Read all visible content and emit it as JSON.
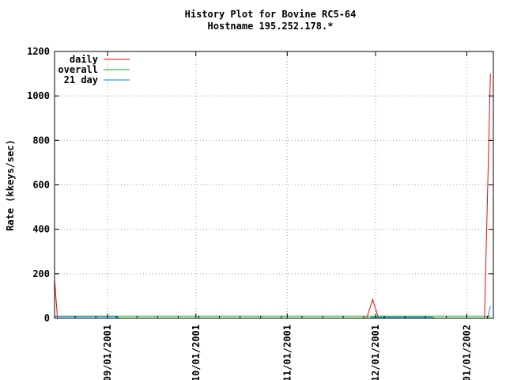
{
  "chart_data": {
    "type": "line",
    "title": "History Plot for Bovine RC5-64",
    "subtitle": "Hostname 195.252.178.*",
    "ylabel": "Rate (kkeys/sec)",
    "xlabel": "",
    "ylim": [
      0,
      1200
    ],
    "xlim": [
      "2001-08-14",
      "2002-01-10"
    ],
    "y_ticks": [
      0,
      200,
      400,
      600,
      800,
      1000,
      1200
    ],
    "x_ticks": [
      "09/01/2001",
      "10/01/2001",
      "11/01/2001",
      "12/01/2001",
      "01/01/2002"
    ],
    "x_tick_dates": [
      "2001-09-01",
      "2001-10-01",
      "2001-11-01",
      "2001-12-01",
      "2002-01-01"
    ],
    "grid": true,
    "legend_position": "top-left",
    "colors": {
      "daily": "#ff0000",
      "overall": "#00c000",
      "21 day": "#0080ff"
    },
    "series": [
      {
        "name": "daily",
        "points": [
          [
            "2001-08-14",
            175
          ],
          [
            "2001-08-15",
            0
          ],
          [
            "2001-11-28",
            0
          ],
          [
            "2001-11-30",
            85
          ],
          [
            "2001-12-02",
            0
          ],
          [
            "2002-01-07",
            0
          ],
          [
            "2002-01-08",
            550
          ],
          [
            "2002-01-09",
            1100
          ]
        ]
      },
      {
        "name": "overall",
        "points": [
          [
            "2001-08-14",
            10
          ],
          [
            "2002-01-09",
            10
          ]
        ]
      },
      {
        "name": "21 day",
        "points": [
          [
            "2001-08-14",
            8
          ],
          [
            "2001-09-04",
            8
          ],
          [
            "2001-09-05",
            0
          ],
          [
            "2001-11-29",
            0
          ],
          [
            "2001-11-30",
            5
          ],
          [
            "2001-12-20",
            5
          ],
          [
            "2001-12-21",
            0
          ],
          [
            "2002-01-08",
            0
          ],
          [
            "2002-01-09",
            55
          ]
        ]
      }
    ]
  }
}
